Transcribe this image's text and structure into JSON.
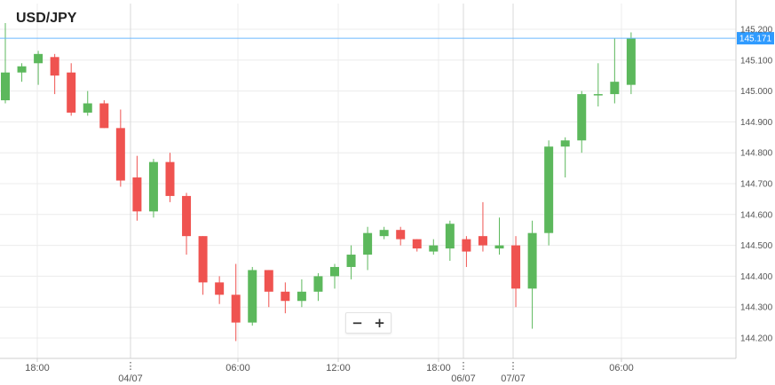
{
  "chart_data": {
    "type": "candlestick",
    "title": "USD/JPY",
    "ylim": [
      144.14,
      145.22
    ],
    "y_ticks": [
      "145.200",
      "145.100",
      "145.000",
      "144.900",
      "144.800",
      "144.700",
      "144.600",
      "144.500",
      "144.400",
      "144.300",
      "144.200"
    ],
    "x_ticks": [
      "18:00",
      "04/07",
      "06:00",
      "12:00",
      "18:00",
      "06/07",
      "07/07",
      "06:00"
    ],
    "current_price": "145.171",
    "candles": [
      {
        "open": 144.97,
        "high": 145.22,
        "low": 144.96,
        "close": 145.06
      },
      {
        "open": 145.06,
        "high": 145.09,
        "low": 145.03,
        "close": 145.08
      },
      {
        "open": 145.09,
        "high": 145.13,
        "low": 145.02,
        "close": 145.12
      },
      {
        "open": 145.11,
        "high": 145.12,
        "low": 144.99,
        "close": 145.05
      },
      {
        "open": 145.06,
        "high": 145.09,
        "low": 144.92,
        "close": 144.93
      },
      {
        "open": 144.93,
        "high": 145.0,
        "low": 144.92,
        "close": 144.96
      },
      {
        "open": 144.96,
        "high": 144.97,
        "low": 144.88,
        "close": 144.88
      },
      {
        "open": 144.88,
        "high": 144.94,
        "low": 144.69,
        "close": 144.71
      },
      {
        "open": 144.72,
        "high": 144.79,
        "low": 144.58,
        "close": 144.61
      },
      {
        "open": 144.61,
        "high": 144.78,
        "low": 144.59,
        "close": 144.77
      },
      {
        "open": 144.77,
        "high": 144.8,
        "low": 144.64,
        "close": 144.66
      },
      {
        "open": 144.66,
        "high": 144.67,
        "low": 144.47,
        "close": 144.53
      },
      {
        "open": 144.53,
        "high": 144.53,
        "low": 144.34,
        "close": 144.38
      },
      {
        "open": 144.38,
        "high": 144.4,
        "low": 144.31,
        "close": 144.34
      },
      {
        "open": 144.34,
        "high": 144.44,
        "low": 144.19,
        "close": 144.25
      },
      {
        "open": 144.25,
        "high": 144.43,
        "low": 144.24,
        "close": 144.42
      },
      {
        "open": 144.42,
        "high": 144.42,
        "low": 144.3,
        "close": 144.35
      },
      {
        "open": 144.35,
        "high": 144.38,
        "low": 144.28,
        "close": 144.32
      },
      {
        "open": 144.32,
        "high": 144.39,
        "low": 144.3,
        "close": 144.35
      },
      {
        "open": 144.35,
        "high": 144.41,
        "low": 144.32,
        "close": 144.4
      },
      {
        "open": 144.4,
        "high": 144.44,
        "low": 144.36,
        "close": 144.43
      },
      {
        "open": 144.43,
        "high": 144.5,
        "low": 144.39,
        "close": 144.47
      },
      {
        "open": 144.47,
        "high": 144.56,
        "low": 144.42,
        "close": 144.54
      },
      {
        "open": 144.53,
        "high": 144.56,
        "low": 144.52,
        "close": 144.55
      },
      {
        "open": 144.55,
        "high": 144.56,
        "low": 144.5,
        "close": 144.52
      },
      {
        "open": 144.52,
        "high": 144.52,
        "low": 144.48,
        "close": 144.49
      },
      {
        "open": 144.48,
        "high": 144.52,
        "low": 144.47,
        "close": 144.5
      },
      {
        "open": 144.49,
        "high": 144.58,
        "low": 144.45,
        "close": 144.57
      },
      {
        "open": 144.52,
        "high": 144.53,
        "low": 144.43,
        "close": 144.48
      },
      {
        "open": 144.53,
        "high": 144.64,
        "low": 144.48,
        "close": 144.5
      },
      {
        "open": 144.49,
        "high": 144.59,
        "low": 144.47,
        "close": 144.5
      },
      {
        "open": 144.5,
        "high": 144.53,
        "low": 144.3,
        "close": 144.36
      },
      {
        "open": 144.36,
        "high": 144.58,
        "low": 144.23,
        "close": 144.54
      },
      {
        "open": 144.54,
        "high": 144.84,
        "low": 144.5,
        "close": 144.82
      },
      {
        "open": 144.82,
        "high": 144.85,
        "low": 144.72,
        "close": 144.84
      },
      {
        "open": 144.84,
        "high": 145.0,
        "low": 144.8,
        "close": 144.99
      },
      {
        "open": 144.99,
        "high": 145.09,
        "low": 144.95,
        "close": 144.99
      },
      {
        "open": 144.99,
        "high": 145.17,
        "low": 144.96,
        "close": 145.03
      },
      {
        "open": 145.02,
        "high": 145.19,
        "low": 144.99,
        "close": 145.17
      }
    ]
  },
  "colors": {
    "up": "#5cb85c",
    "down": "#ef5350",
    "grid": "#ececec",
    "price_line": "#6ab7ff",
    "price_tag": "#2f9bff",
    "axis": "#cfcfcf",
    "vline": "#d8d8d8"
  },
  "controls": {
    "zoom_out": "−",
    "zoom_in": "+"
  }
}
